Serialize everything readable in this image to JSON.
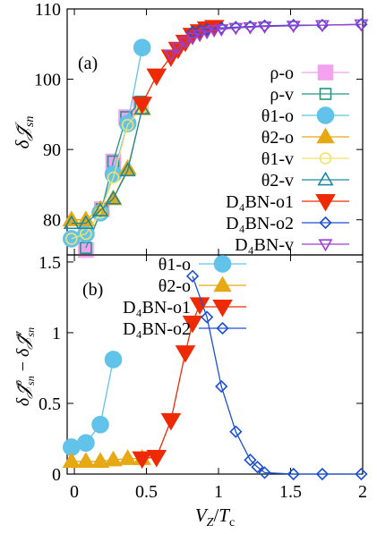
{
  "chart_data": [
    {
      "panel_label": "(a)",
      "type": "line",
      "xlabel": "V_Z/T_c",
      "ylabel": "δ𝒥̄_sn",
      "xlim": [
        -0.05,
        2.0
      ],
      "ylim": [
        75,
        110
      ],
      "xticks": [
        0,
        0.5,
        1,
        1.5,
        2
      ],
      "xticklabels": [
        "",
        "",
        "",
        "",
        ""
      ],
      "yticks": [
        80,
        90,
        100,
        110
      ],
      "yticklabels": [
        "80",
        "90",
        "100",
        "110"
      ],
      "legend_position": "right",
      "series": [
        {
          "key": "rho_o",
          "name": "ρ-o",
          "color": "#f2a2ee",
          "marker": "square-filled",
          "points": [
            [
              0.08,
              75.7
            ],
            [
              0.19,
              81.5
            ],
            [
              0.27,
              88.3
            ],
            [
              0.36,
              94.6
            ],
            [
              0.46,
              96.5
            ]
          ]
        },
        {
          "key": "rho_v",
          "name": "ρ-v",
          "color": "#1a9a86",
          "marker": "square-open",
          "points": [
            [
              0.08,
              76.0
            ],
            [
              0.19,
              81.5
            ],
            [
              0.27,
              88.3
            ],
            [
              0.36,
              94.6
            ],
            [
              0.46,
              96.8
            ]
          ]
        },
        {
          "key": "theta1_o",
          "name": "θ1-o",
          "color": "#62c3ea",
          "marker": "circle-filled",
          "points": [
            [
              -0.02,
              77.3
            ],
            [
              0.08,
              78.0
            ],
            [
              0.18,
              81.0
            ],
            [
              0.27,
              86.5
            ],
            [
              0.37,
              93.7
            ],
            [
              0.47,
              104.5
            ]
          ]
        },
        {
          "key": "theta2_o",
          "name": "θ2-o",
          "color": "#e6a813",
          "marker": "triangle-up-filled",
          "points": [
            [
              -0.02,
              80.0
            ],
            [
              0.08,
              80.0
            ],
            [
              0.18,
              81.5
            ],
            [
              0.27,
              83.0
            ],
            [
              0.37,
              87.3
            ],
            [
              0.47,
              95.8
            ]
          ]
        },
        {
          "key": "theta1_v",
          "name": "θ1-v",
          "color": "#f0e26a",
          "marker": "circle-open",
          "points": [
            [
              -0.02,
              77.3
            ],
            [
              0.08,
              78.0
            ],
            [
              0.18,
              81.0
            ],
            [
              0.27,
              86.0
            ],
            [
              0.37,
              93.5
            ],
            [
              0.47,
              96.0
            ]
          ]
        },
        {
          "key": "theta2_v",
          "name": "θ2-v",
          "color": "#1a8aa1",
          "marker": "triangle-up-open",
          "points": [
            [
              -0.02,
              79.5
            ],
            [
              0.08,
              79.5
            ],
            [
              0.18,
              81.3
            ],
            [
              0.27,
              83.0
            ],
            [
              0.37,
              87.0
            ],
            [
              0.47,
              95.8
            ]
          ]
        },
        {
          "key": "d4bn_o1",
          "name": "D₄BN-o1",
          "color": "#ee2a05",
          "marker": "triangle-down-filled",
          "points": [
            [
              0.47,
              96.5
            ],
            [
              0.57,
              100.5
            ],
            [
              0.67,
              103.2
            ],
            [
              0.72,
              104.3
            ],
            [
              0.77,
              105.3
            ],
            [
              0.82,
              106.3
            ],
            [
              0.87,
              106.8
            ],
            [
              0.92,
              107.2
            ],
            [
              0.97,
              107.4
            ]
          ]
        },
        {
          "key": "d4bn_o2",
          "name": "D₄BN-o2",
          "color": "#1c4fd3",
          "marker": "diamond-open",
          "points": [
            [
              0.82,
              106.7
            ],
            [
              0.87,
              106.9
            ],
            [
              0.92,
              107.1
            ],
            [
              1.02,
              107.3
            ],
            [
              1.12,
              107.4
            ],
            [
              1.22,
              107.5
            ],
            [
              1.32,
              107.6
            ],
            [
              1.52,
              107.7
            ],
            [
              1.72,
              107.7
            ],
            [
              1.99,
              107.8
            ]
          ]
        },
        {
          "key": "d4bn_v",
          "name": "D₄BN-v",
          "color": "#9b3fd2",
          "marker": "triangle-down-open",
          "points": [
            [
              0.67,
              103.5
            ],
            [
              0.72,
              104.5
            ],
            [
              0.77,
              105.3
            ],
            [
              0.82,
              105.9
            ],
            [
              0.87,
              106.3
            ],
            [
              0.92,
              106.7
            ],
            [
              0.97,
              107.0
            ],
            [
              1.02,
              107.1
            ],
            [
              1.12,
              107.3
            ],
            [
              1.22,
              107.4
            ],
            [
              1.32,
              107.5
            ],
            [
              1.52,
              107.6
            ],
            [
              1.72,
              107.7
            ],
            [
              1.99,
              107.8
            ]
          ]
        }
      ]
    },
    {
      "panel_label": "(b)",
      "type": "line",
      "xlabel": "V_Z/T_c",
      "ylabel": "δ𝒥̄ᵒ_sn − δ𝒥̄ᵛ_sn",
      "xlim": [
        -0.05,
        2.0
      ],
      "ylim": [
        0,
        1.55
      ],
      "xticks": [
        0,
        0.5,
        1,
        1.5,
        2
      ],
      "xticklabels": [
        "0",
        "0.5",
        "1",
        "1.5",
        "2"
      ],
      "yticks": [
        0,
        0.5,
        1,
        1.5
      ],
      "yticklabels": [
        "0",
        "0.5",
        "1",
        "1.5"
      ],
      "legend_position": "top-left",
      "series": [
        {
          "key": "theta1_o",
          "name": "θ1-o",
          "color": "#62c3ea",
          "marker": "circle-filled",
          "points": [
            [
              -0.02,
              0.19
            ],
            [
              0.08,
              0.22
            ],
            [
              0.18,
              0.35
            ],
            [
              0.27,
              0.81
            ]
          ]
        },
        {
          "key": "theta2_o",
          "name": "θ2-o",
          "color": "#e6a813",
          "marker": "triangle-up-filled",
          "points": [
            [
              -0.02,
              0.09
            ],
            [
              0.08,
              0.09
            ],
            [
              0.18,
              0.09
            ],
            [
              0.27,
              0.1
            ],
            [
              0.37,
              0.11
            ],
            [
              0.47,
              0.11
            ]
          ]
        },
        {
          "key": "d4bn_o1",
          "name": "D₄BN-o1",
          "color": "#ee2a05",
          "marker": "triangle-down-filled",
          "points": [
            [
              0.47,
              0.11
            ],
            [
              0.57,
              0.12
            ],
            [
              0.67,
              0.38
            ],
            [
              0.77,
              0.86
            ],
            [
              0.82,
              1.07
            ],
            [
              0.87,
              1.2
            ]
          ]
        },
        {
          "key": "d4bn_o2",
          "name": "D₄BN-o2",
          "color": "#1c4fd3",
          "marker": "diamond-open",
          "points": [
            [
              0.82,
              1.4
            ],
            [
              0.92,
              1.11
            ],
            [
              1.02,
              0.62
            ],
            [
              1.12,
              0.3
            ],
            [
              1.22,
              0.1
            ],
            [
              1.27,
              0.05
            ],
            [
              1.32,
              0.01
            ],
            [
              1.52,
              0.0
            ],
            [
              1.72,
              0.0
            ],
            [
              1.99,
              0.0
            ]
          ]
        }
      ]
    }
  ]
}
